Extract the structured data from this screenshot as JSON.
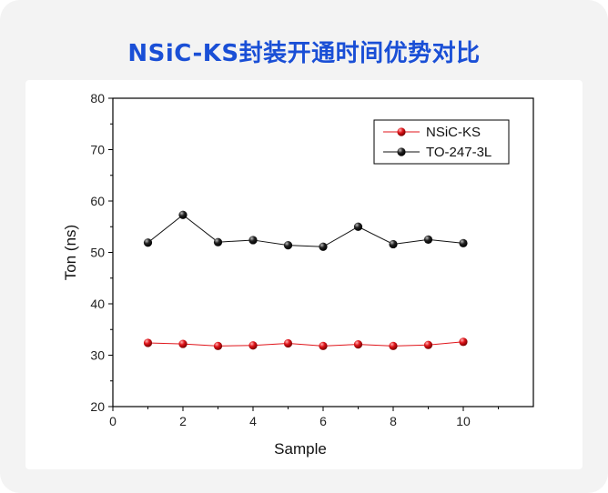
{
  "page_title": "NSiC-KS封装开通时间优势对比",
  "colors": {
    "title": "#1a4fd6",
    "card_bg": "#f3f3f3",
    "red_series": "#e0151b",
    "black_series": "#111111"
  },
  "chart_data": {
    "type": "line",
    "title": "",
    "xlabel": "Sample",
    "ylabel": "Ton (ns)",
    "xlim": [
      0,
      12
    ],
    "ylim": [
      20,
      80
    ],
    "xticks": [
      0,
      2,
      4,
      6,
      8,
      10
    ],
    "yticks": [
      20,
      30,
      40,
      50,
      60,
      70,
      80
    ],
    "x": [
      1,
      2,
      3,
      4,
      5,
      6,
      7,
      8,
      9,
      10
    ],
    "legend_position": "top-right",
    "grid": false,
    "series": [
      {
        "name": "NSiC-KS",
        "color": "#e0151b",
        "values": [
          32.4,
          32.2,
          31.8,
          31.9,
          32.3,
          31.8,
          32.1,
          31.8,
          32.0,
          32.6
        ]
      },
      {
        "name": "TO-247-3L",
        "color": "#111111",
        "values": [
          51.9,
          57.3,
          52.0,
          52.4,
          51.4,
          51.1,
          55.0,
          51.6,
          52.5,
          51.8
        ]
      }
    ]
  }
}
